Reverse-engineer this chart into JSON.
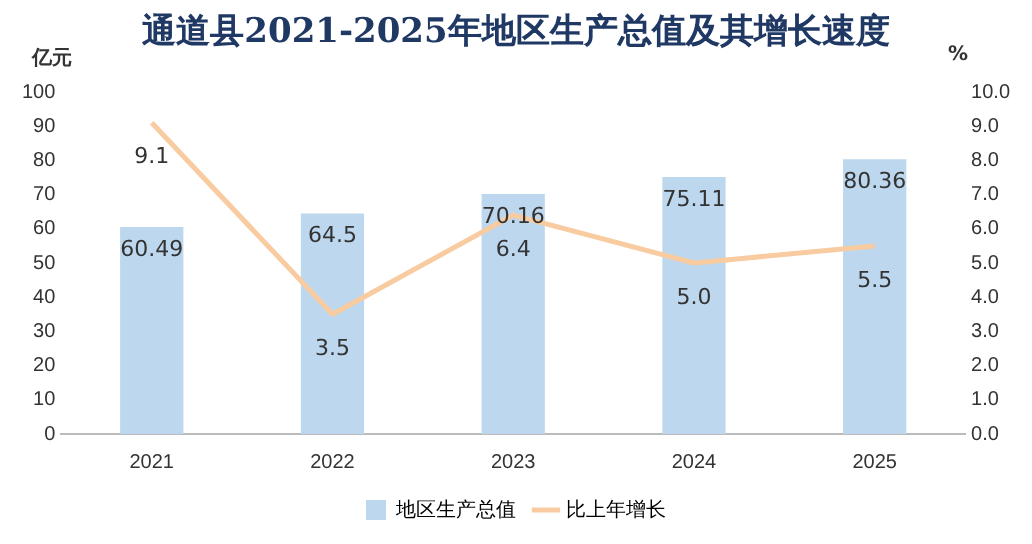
{
  "chart_data": {
    "type": "bar",
    "title": "通道县2021-2025年地区生产总值及其增长速度",
    "ylabel": "亿元",
    "y2label": "%",
    "categories": [
      "2021",
      "2022",
      "2023",
      "2024",
      "2025"
    ],
    "series": [
      {
        "name": "地区生产总值",
        "color": "#bdd7ee",
        "values": [
          60.49,
          64.5,
          70.16,
          75.11,
          80.36
        ]
      },
      {
        "name": "比上年增长",
        "type": "line",
        "axis": "y2",
        "color": "#f8cba0",
        "values": [
          9.1,
          3.5,
          6.4,
          5.0,
          5.5
        ],
        "value_labels": [
          "9.1",
          "3.5",
          "6.4",
          "5.0",
          "5.5"
        ]
      }
    ],
    "ylim": [
      0,
      100
    ],
    "yticks": [
      0,
      10,
      20,
      30,
      40,
      50,
      60,
      70,
      80,
      90,
      100
    ],
    "y2lim": [
      0,
      10
    ],
    "y2ticks": [
      {
        "value": 0,
        "label": "0.0"
      },
      {
        "value": 1,
        "label": "1.0"
      },
      {
        "value": 2,
        "label": "2.0"
      },
      {
        "value": 3,
        "label": "3.0"
      },
      {
        "value": 4,
        "label": "4.0"
      },
      {
        "value": 5,
        "label": "5.0"
      },
      {
        "value": 6,
        "label": "6.0"
      },
      {
        "value": 7,
        "label": "7.0"
      },
      {
        "value": 8,
        "label": "8.0"
      },
      {
        "value": 9,
        "label": "9.0"
      },
      {
        "value": 10,
        "label": "10.0"
      }
    ],
    "grid": false,
    "legend": "bottom",
    "data_labels": true,
    "marker": "none"
  }
}
